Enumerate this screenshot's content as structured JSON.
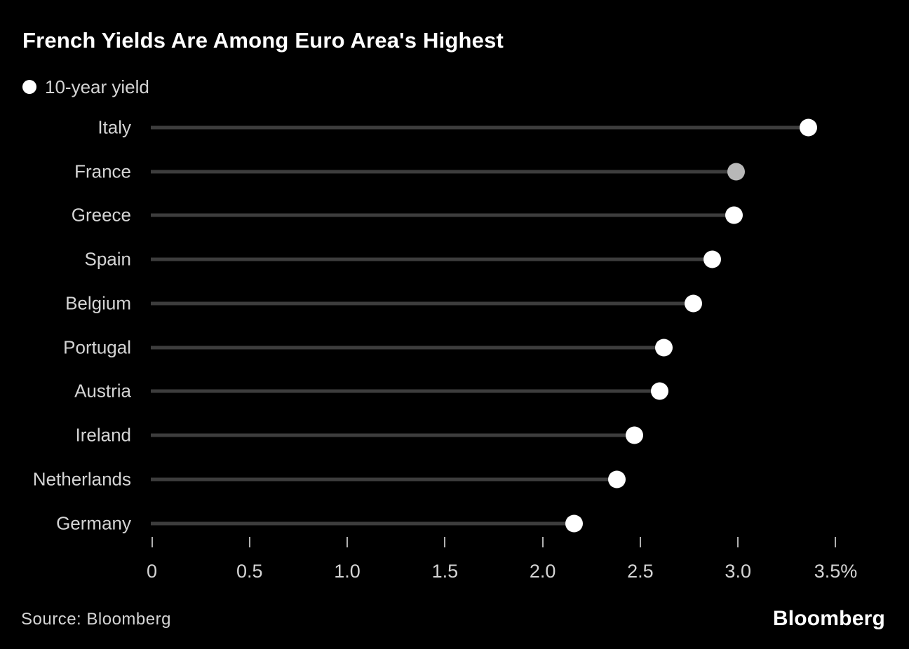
{
  "header": {
    "title": "French Yields Are Among Euro Area's Highest",
    "legend": {
      "marker": "dot-icon",
      "marker_color": "#ffffff",
      "label": "10-year yield"
    }
  },
  "footer": {
    "source": "Source: Bloomberg",
    "brand": "Bloomberg"
  },
  "colors": {
    "background": "#000000",
    "title_text": "#ffffff",
    "body_text": "#d4d4d4",
    "stem": "#3d3d3d",
    "dot": "#ffffff",
    "dot_highlight": "#b8b8b8",
    "tick": "#b0b0b0"
  },
  "chart_data": {
    "type": "bar",
    "subtype": "lollipop",
    "orientation": "horizontal",
    "title": "French Yields Are Among Euro Area's Highest",
    "series_label": "10-year yield",
    "unit": "%",
    "categories": [
      "Italy",
      "France",
      "Greece",
      "Spain",
      "Belgium",
      "Portugal",
      "Austria",
      "Ireland",
      "Netherlands",
      "Germany"
    ],
    "values": [
      3.36,
      2.99,
      2.98,
      2.87,
      2.77,
      2.62,
      2.6,
      2.47,
      2.38,
      2.16
    ],
    "highlight_category": "France",
    "xlabel": "",
    "ylabel": "",
    "xlim": [
      0,
      3.5
    ],
    "x_ticks": [
      {
        "value": 0,
        "label": "0"
      },
      {
        "value": 0.5,
        "label": "0.5"
      },
      {
        "value": 1.0,
        "label": "1.0"
      },
      {
        "value": 1.5,
        "label": "1.5"
      },
      {
        "value": 2.0,
        "label": "2.0"
      },
      {
        "value": 2.5,
        "label": "2.5"
      },
      {
        "value": 3.0,
        "label": "3.0"
      },
      {
        "value": 3.5,
        "label": "3.5%"
      }
    ],
    "grid": false,
    "legend_position": "top-left",
    "source": "Bloomberg"
  }
}
